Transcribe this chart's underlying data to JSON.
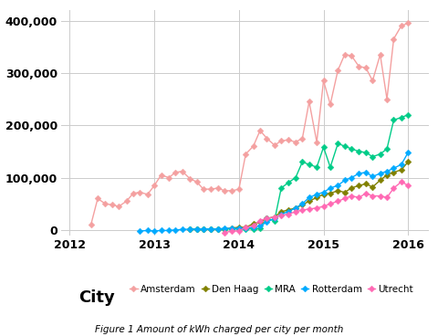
{
  "title": "Figure 1 Amount of kWh charged per city per month",
  "ylim": [
    -10000,
    420000
  ],
  "xlim": [
    2011.9,
    2016.25
  ],
  "yticks": [
    0,
    100000,
    200000,
    300000,
    400000
  ],
  "ytick_labels": [
    "0",
    "100,000",
    "200,000",
    "300,000",
    "400,000"
  ],
  "xticks": [
    2012,
    2013,
    2014,
    2015,
    2016
  ],
  "xtick_labels": [
    "2012",
    "2013",
    "2014",
    "2015",
    "2016"
  ],
  "series": {
    "Amsterdam": {
      "color": "#F4A0A0",
      "marker": "D",
      "markersize": 3.5,
      "x": [
        2012.25,
        2012.33,
        2012.42,
        2012.5,
        2012.58,
        2012.67,
        2012.75,
        2012.83,
        2012.92,
        2013.0,
        2013.08,
        2013.17,
        2013.25,
        2013.33,
        2013.42,
        2013.5,
        2013.58,
        2013.67,
        2013.75,
        2013.83,
        2013.92,
        2014.0,
        2014.08,
        2014.17,
        2014.25,
        2014.33,
        2014.42,
        2014.5,
        2014.58,
        2014.67,
        2014.75,
        2014.83,
        2014.92,
        2015.0,
        2015.08,
        2015.17,
        2015.25,
        2015.33,
        2015.42,
        2015.5,
        2015.58,
        2015.67,
        2015.75,
        2015.83,
        2015.92,
        2016.0
      ],
      "y": [
        10000,
        60000,
        50000,
        48000,
        45000,
        55000,
        70000,
        72000,
        68000,
        85000,
        105000,
        100000,
        110000,
        112000,
        98000,
        92000,
        78000,
        78000,
        80000,
        75000,
        75000,
        78000,
        145000,
        160000,
        190000,
        175000,
        162000,
        170000,
        172000,
        168000,
        175000,
        245000,
        168000,
        285000,
        240000,
        305000,
        335000,
        333000,
        312000,
        310000,
        285000,
        335000,
        250000,
        365000,
        390000,
        395000
      ]
    },
    "Den Haag": {
      "color": "#808000",
      "marker": "D",
      "markersize": 3.5,
      "x": [
        2013.42,
        2013.5,
        2013.58,
        2013.67,
        2013.75,
        2013.83,
        2013.92,
        2014.0,
        2014.08,
        2014.17,
        2014.25,
        2014.33,
        2014.42,
        2014.5,
        2014.58,
        2014.67,
        2014.75,
        2014.83,
        2014.92,
        2015.0,
        2015.08,
        2015.17,
        2015.25,
        2015.33,
        2015.42,
        2015.5,
        2015.58,
        2015.67,
        2015.75,
        2015.83,
        2015.92,
        2016.0
      ],
      "y": [
        1000,
        1500,
        2000,
        2000,
        2000,
        2000,
        4000,
        5000,
        5000,
        12000,
        15000,
        22000,
        25000,
        35000,
        38000,
        42000,
        48000,
        55000,
        62000,
        68000,
        70000,
        75000,
        72000,
        80000,
        85000,
        88000,
        82000,
        95000,
        105000,
        110000,
        115000,
        130000
      ]
    },
    "MRA": {
      "color": "#00CC88",
      "marker": "D",
      "markersize": 3.5,
      "x": [
        2013.42,
        2013.5,
        2013.58,
        2013.67,
        2013.75,
        2013.83,
        2013.92,
        2014.0,
        2014.08,
        2014.17,
        2014.25,
        2014.33,
        2014.42,
        2014.5,
        2014.58,
        2014.67,
        2014.75,
        2014.83,
        2014.92,
        2015.0,
        2015.08,
        2015.17,
        2015.25,
        2015.33,
        2015.42,
        2015.5,
        2015.58,
        2015.67,
        2015.75,
        2015.83,
        2015.92,
        2016.0
      ],
      "y": [
        1000,
        1000,
        1500,
        2000,
        2000,
        2000,
        2000,
        2000,
        2000,
        2000,
        2500,
        22000,
        18000,
        80000,
        90000,
        100000,
        130000,
        125000,
        120000,
        158000,
        120000,
        165000,
        160000,
        155000,
        150000,
        148000,
        140000,
        145000,
        155000,
        210000,
        215000,
        220000
      ]
    },
    "Rotterdam": {
      "color": "#00AAFF",
      "marker": "D",
      "markersize": 3.5,
      "x": [
        2012.83,
        2012.92,
        2013.0,
        2013.08,
        2013.17,
        2013.25,
        2013.33,
        2013.42,
        2013.5,
        2013.58,
        2013.67,
        2013.75,
        2013.83,
        2013.92,
        2014.0,
        2014.08,
        2014.17,
        2014.25,
        2014.33,
        2014.42,
        2014.5,
        2014.58,
        2014.67,
        2014.75,
        2014.83,
        2014.92,
        2015.0,
        2015.08,
        2015.17,
        2015.25,
        2015.33,
        2015.42,
        2015.5,
        2015.58,
        2015.67,
        2015.75,
        2015.83,
        2015.92,
        2016.0
      ],
      "y": [
        -2000,
        -1000,
        -2000,
        -1000,
        -1000,
        0,
        1000,
        1500,
        2000,
        2000,
        2000,
        2000,
        3000,
        3000,
        3000,
        4000,
        5000,
        8000,
        15000,
        22000,
        30000,
        35000,
        42000,
        50000,
        62000,
        68000,
        72000,
        80000,
        85000,
        95000,
        100000,
        108000,
        110000,
        102000,
        108000,
        112000,
        118000,
        125000,
        148000
      ]
    },
    "Utrecht": {
      "color": "#FF69B4",
      "marker": "D",
      "markersize": 3.5,
      "x": [
        2013.83,
        2013.92,
        2014.0,
        2014.08,
        2014.17,
        2014.25,
        2014.33,
        2014.42,
        2014.5,
        2014.58,
        2014.67,
        2014.75,
        2014.83,
        2014.92,
        2015.0,
        2015.08,
        2015.17,
        2015.25,
        2015.33,
        2015.42,
        2015.5,
        2015.58,
        2015.67,
        2015.75,
        2015.83,
        2015.92,
        2016.0
      ],
      "y": [
        -5000,
        -2000,
        -2000,
        5000,
        8000,
        18000,
        22000,
        25000,
        28000,
        30000,
        35000,
        38000,
        40000,
        42000,
        45000,
        50000,
        55000,
        60000,
        65000,
        62000,
        70000,
        65000,
        65000,
        62000,
        80000,
        92000,
        85000
      ]
    }
  },
  "legend_labels": [
    "Amsterdam",
    "Den Haag",
    "MRA",
    "Rotterdam",
    "Utrecht"
  ],
  "background_color": "#ffffff",
  "grid_color": "#cccccc"
}
